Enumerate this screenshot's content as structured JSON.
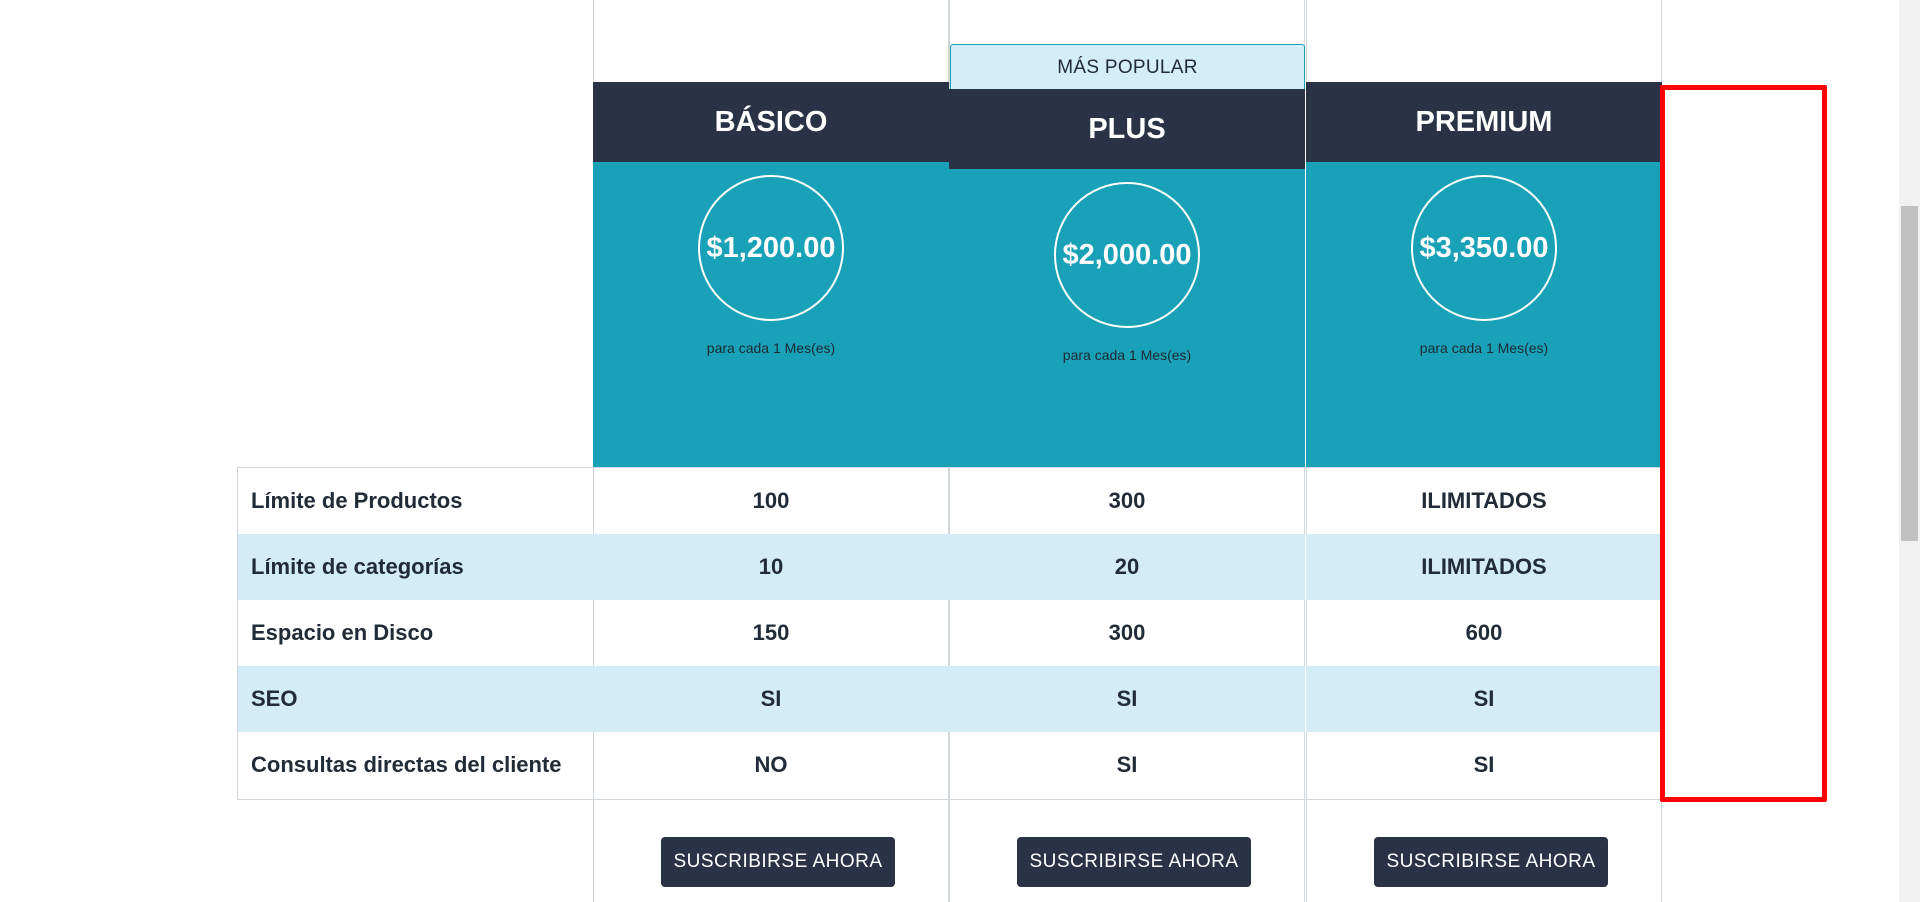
{
  "popular_tag": "MÁS POPULAR",
  "plans": [
    {
      "name": "BÁSICO",
      "price": "$1,200.00",
      "period": "para cada 1 Mes(es)",
      "button": "SUSCRIBIRSE AHORA"
    },
    {
      "name": "PLUS",
      "price": "$2,000.00",
      "period": "para cada 1 Mes(es)",
      "button": "SUSCRIBIRSE AHORA"
    },
    {
      "name": "PREMIUM",
      "price": "$3,350.00",
      "period": "para cada 1 Mes(es)",
      "button": "SUSCRIBIRSE AHORA"
    }
  ],
  "features": [
    {
      "label": "Límite de Productos",
      "values": [
        "100",
        "300",
        "ILIMITADOS"
      ]
    },
    {
      "label": "Límite de categorías",
      "values": [
        "10",
        "20",
        "ILIMITADOS"
      ]
    },
    {
      "label": "Espacio en Disco",
      "values": [
        "150",
        "300",
        "600"
      ]
    },
    {
      "label": "SEO",
      "values": [
        "SI",
        "SI",
        "SI"
      ]
    },
    {
      "label": "Consultas directas del cliente",
      "values": [
        "NO",
        "SI",
        "SI"
      ]
    }
  ],
  "colors": {
    "header_dark": "#2a3346",
    "price_teal": "#19a1b7",
    "row_shade": "#d4ecf5",
    "popular_bg": "#d3eef7",
    "highlight": "#ff0000"
  }
}
